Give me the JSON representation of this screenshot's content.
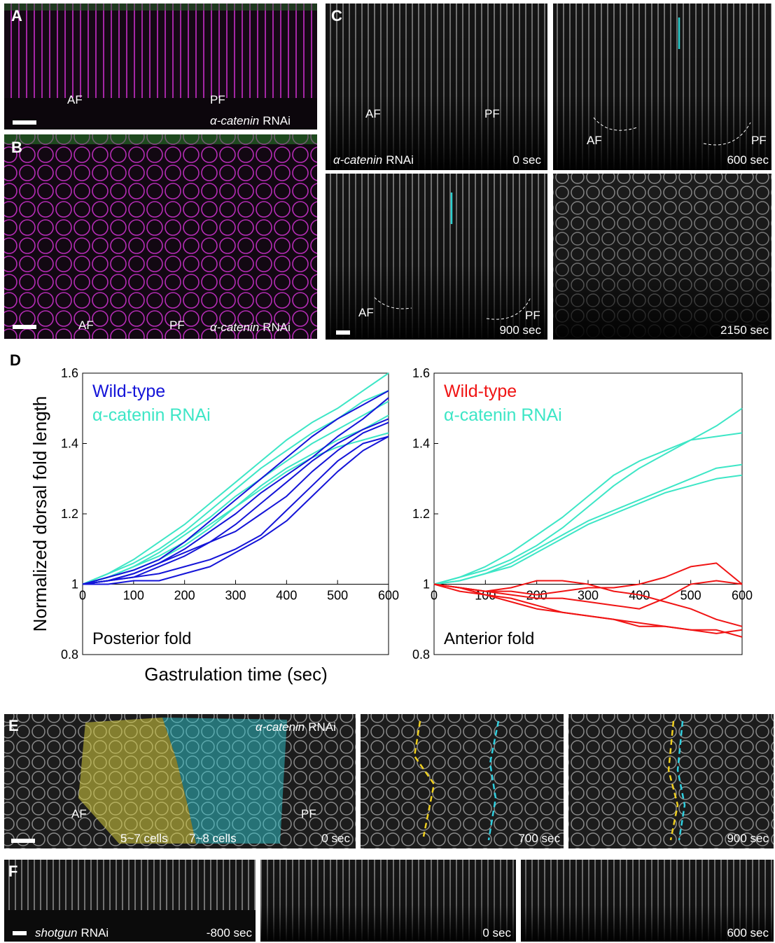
{
  "panel_A": {
    "letter": "A",
    "labels": [
      "AF",
      "PF"
    ],
    "genotype": {
      "gene": "α-catenin",
      "suffix": "RNAi"
    }
  },
  "panel_B": {
    "letter": "B",
    "labels": [
      "AF",
      "PF"
    ],
    "genotype": {
      "gene": "α-catenin",
      "suffix": "RNAi"
    }
  },
  "panel_C": {
    "letter": "C",
    "genotype": {
      "gene": "α-catenin",
      "suffix": "RNAi"
    },
    "frames": [
      {
        "labels": [
          "AF",
          "PF"
        ],
        "time": "0 sec"
      },
      {
        "labels": [
          "AF",
          "PF"
        ],
        "time": "600 sec"
      },
      {
        "labels": [
          "AF",
          "PF"
        ],
        "time": "900 sec"
      },
      {
        "time": "2150 sec"
      }
    ]
  },
  "panel_D": {
    "letter": "D",
    "ylabel": "Normalized dorsal fold length",
    "xlabel": "Gastrulation time (sec)"
  },
  "chart_data": [
    {
      "type": "line",
      "annotation": "Posterior fold",
      "x": [
        0,
        50,
        100,
        150,
        200,
        250,
        300,
        350,
        400,
        450,
        500,
        550,
        600
      ],
      "xlim": [
        0,
        600
      ],
      "xticks": [
        0,
        100,
        200,
        300,
        400,
        500,
        600
      ],
      "ylim": [
        0.8,
        1.6
      ],
      "yticks": [
        0.8,
        1,
        1.2,
        1.4,
        1.6
      ],
      "x_axis_at": 1,
      "legend": "upper left",
      "series": [
        {
          "name": "Wild-type",
          "color": "#1414d8",
          "values": [
            [
              1,
              1.02,
              1.04,
              1.07,
              1.12,
              1.18,
              1.24,
              1.3,
              1.36,
              1.42,
              1.47,
              1.51,
              1.55
            ],
            [
              1,
              1.01,
              1.03,
              1.06,
              1.1,
              1.15,
              1.2,
              1.26,
              1.31,
              1.36,
              1.42,
              1.47,
              1.53
            ],
            [
              1,
              1.01,
              1.03,
              1.06,
              1.09,
              1.12,
              1.17,
              1.23,
              1.29,
              1.35,
              1.4,
              1.44,
              1.47
            ],
            [
              1,
              1.01,
              1.02,
              1.05,
              1.08,
              1.12,
              1.15,
              1.2,
              1.25,
              1.32,
              1.38,
              1.43,
              1.46
            ],
            [
              1,
              1.01,
              1.02,
              1.03,
              1.05,
              1.07,
              1.1,
              1.14,
              1.21,
              1.28,
              1.35,
              1.4,
              1.42
            ],
            [
              1,
              1.0,
              1.01,
              1.01,
              1.03,
              1.05,
              1.09,
              1.13,
              1.18,
              1.25,
              1.32,
              1.38,
              1.42
            ]
          ]
        },
        {
          "name": "α-catenin RNAi",
          "color": "#3de6c6",
          "values": [
            [
              1,
              1.03,
              1.07,
              1.12,
              1.17,
              1.23,
              1.29,
              1.35,
              1.41,
              1.46,
              1.5,
              1.55,
              1.6
            ],
            [
              1,
              1.03,
              1.06,
              1.1,
              1.15,
              1.21,
              1.27,
              1.33,
              1.38,
              1.43,
              1.47,
              1.52,
              1.55
            ],
            [
              1,
              1.02,
              1.05,
              1.09,
              1.14,
              1.19,
              1.25,
              1.3,
              1.35,
              1.4,
              1.44,
              1.48,
              1.52
            ],
            [
              1,
              1.02,
              1.05,
              1.08,
              1.12,
              1.17,
              1.22,
              1.28,
              1.33,
              1.37,
              1.41,
              1.44,
              1.48
            ],
            [
              1,
              1.02,
              1.04,
              1.07,
              1.11,
              1.16,
              1.22,
              1.27,
              1.32,
              1.36,
              1.39,
              1.41,
              1.43
            ]
          ]
        }
      ]
    },
    {
      "type": "line",
      "annotation": "Anterior fold",
      "x": [
        0,
        50,
        100,
        150,
        200,
        250,
        300,
        350,
        400,
        450,
        500,
        550,
        600
      ],
      "xlim": [
        0,
        600
      ],
      "xticks": [
        0,
        100,
        200,
        300,
        400,
        500,
        600
      ],
      "ylim": [
        0.8,
        1.6
      ],
      "yticks": [
        0.8,
        1,
        1.2,
        1.4,
        1.6
      ],
      "x_axis_at": 1,
      "legend": "upper left",
      "series": [
        {
          "name": "Wild-type",
          "color": "#f01414",
          "values": [
            [
              1,
              0.99,
              0.98,
              0.98,
              0.97,
              0.98,
              0.99,
              0.99,
              1.0,
              1.02,
              1.05,
              1.06,
              1.0
            ],
            [
              1,
              0.99,
              0.98,
              0.99,
              1.01,
              1.01,
              1.0,
              0.98,
              0.97,
              0.95,
              0.93,
              0.9,
              0.88
            ],
            [
              1,
              0.99,
              0.98,
              0.97,
              0.96,
              0.96,
              0.95,
              0.94,
              0.93,
              0.96,
              1.0,
              1.01,
              1.0
            ],
            [
              1,
              0.98,
              0.97,
              0.95,
              0.93,
              0.92,
              0.91,
              0.9,
              0.88,
              0.88,
              0.87,
              0.86,
              0.87
            ],
            [
              1,
              0.99,
              0.97,
              0.96,
              0.94,
              0.92,
              0.91,
              0.9,
              0.89,
              0.88,
              0.87,
              0.87,
              0.85
            ]
          ]
        },
        {
          "name": "α-catenin RNAi",
          "color": "#3de6c6",
          "values": [
            [
              1,
              1.02,
              1.05,
              1.09,
              1.14,
              1.19,
              1.25,
              1.31,
              1.35,
              1.38,
              1.41,
              1.42,
              1.43
            ],
            [
              1,
              1.02,
              1.04,
              1.07,
              1.11,
              1.16,
              1.22,
              1.28,
              1.33,
              1.37,
              1.41,
              1.45,
              1.5
            ],
            [
              1,
              1.01,
              1.03,
              1.06,
              1.1,
              1.14,
              1.18,
              1.21,
              1.24,
              1.27,
              1.3,
              1.33,
              1.34
            ],
            [
              1,
              1.01,
              1.03,
              1.05,
              1.09,
              1.13,
              1.17,
              1.2,
              1.23,
              1.26,
              1.28,
              1.3,
              1.31
            ]
          ]
        }
      ]
    }
  ],
  "panel_E": {
    "letter": "E",
    "genotype": {
      "gene": "α-catenin",
      "suffix": "RNAi"
    },
    "labels": [
      "AF",
      "PF"
    ],
    "regions": [
      "5~7 cells",
      "7~8 cells"
    ],
    "times": [
      "0 sec",
      "700 sec",
      "900 sec"
    ]
  },
  "panel_F": {
    "letter": "F",
    "genotype": {
      "gene": "shotgun",
      "suffix": "RNAi"
    },
    "times": [
      "-800 sec",
      "0 sec",
      "600 sec"
    ]
  }
}
